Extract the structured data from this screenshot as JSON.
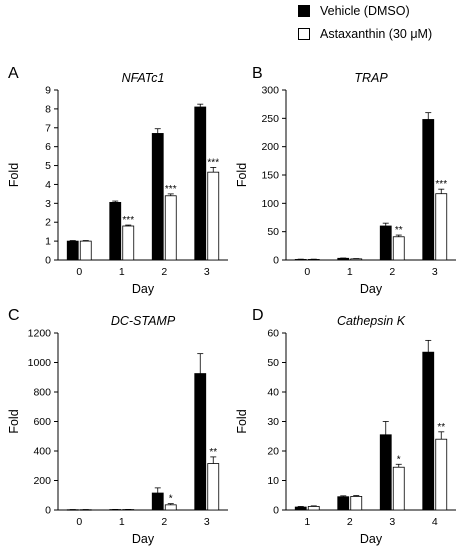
{
  "legend": {
    "items": [
      {
        "label": "Vehicle (DMSO)",
        "fill": "#000000"
      },
      {
        "label": "Astaxanthin (30 μM)",
        "fill": "#ffffff"
      }
    ]
  },
  "colors": {
    "vehicle": "#000000",
    "astaxanthin": "#ffffff",
    "outline": "#000000"
  },
  "chart_data": [
    {
      "panel": "A",
      "type": "bar",
      "title": "NFATc1",
      "title_italic": true,
      "xlabel": "Day",
      "ylabel": "Fold",
      "categories": [
        "0",
        "1",
        "2",
        "3"
      ],
      "ylim": [
        0,
        9
      ],
      "yticks": [
        0,
        1,
        2,
        3,
        4,
        5,
        6,
        7,
        8,
        9
      ],
      "series": [
        {
          "name": "Vehicle (DMSO)",
          "values": [
            1.0,
            3.05,
            6.7,
            8.1
          ],
          "errors": [
            0.03,
            0.07,
            0.25,
            0.15
          ]
        },
        {
          "name": "Astaxanthin (30 μM)",
          "values": [
            1.0,
            1.8,
            3.4,
            4.65
          ],
          "errors": [
            0.03,
            0.05,
            0.1,
            0.25
          ]
        }
      ],
      "annotations": [
        "",
        "***",
        "***",
        "***"
      ]
    },
    {
      "panel": "B",
      "type": "bar",
      "title": "TRAP",
      "title_italic": true,
      "xlabel": "Day",
      "ylabel": "Fold",
      "categories": [
        "0",
        "1",
        "2",
        "3"
      ],
      "ylim": [
        0,
        300
      ],
      "yticks": [
        0,
        50,
        100,
        150,
        200,
        250,
        300
      ],
      "series": [
        {
          "name": "Vehicle (DMSO)",
          "values": [
            1,
            3,
            60,
            248
          ],
          "errors": [
            0.5,
            0.5,
            5,
            12
          ]
        },
        {
          "name": "Astaxanthin (30 μM)",
          "values": [
            1,
            2,
            41,
            117
          ],
          "errors": [
            0.5,
            0.5,
            3,
            8
          ]
        }
      ],
      "annotations": [
        "",
        "",
        "**",
        "***"
      ]
    },
    {
      "panel": "C",
      "type": "bar",
      "title": "DC-STAMP",
      "title_italic": true,
      "xlabel": "Day",
      "ylabel": "Fold",
      "categories": [
        "0",
        "1",
        "2",
        "3"
      ],
      "ylim": [
        0,
        1200
      ],
      "yticks": [
        0,
        200,
        400,
        600,
        800,
        1000,
        1200
      ],
      "series": [
        {
          "name": "Vehicle (DMSO)",
          "values": [
            2,
            3,
            115,
            925
          ],
          "errors": [
            1,
            1,
            35,
            135
          ]
        },
        {
          "name": "Astaxanthin (30 μM)",
          "values": [
            2,
            3,
            35,
            315
          ],
          "errors": [
            1,
            1,
            8,
            45
          ]
        }
      ],
      "annotations": [
        "",
        "",
        "*",
        "**"
      ]
    },
    {
      "panel": "D",
      "type": "bar",
      "title": "Cathepsin K",
      "title_italic": true,
      "xlabel": "Day",
      "ylabel": "Fold",
      "categories": [
        "1",
        "2",
        "3",
        "4"
      ],
      "ylim": [
        0,
        60
      ],
      "yticks": [
        0,
        10,
        20,
        30,
        40,
        50,
        60
      ],
      "series": [
        {
          "name": "Vehicle (DMSO)",
          "values": [
            1,
            4.5,
            25.5,
            53.5
          ],
          "errors": [
            0.2,
            0.3,
            4.5,
            4
          ]
        },
        {
          "name": "Astaxanthin (30 μM)",
          "values": [
            1.2,
            4.6,
            14.5,
            24
          ],
          "errors": [
            0.2,
            0.3,
            1,
            2.5
          ]
        }
      ],
      "annotations": [
        "",
        "",
        "*",
        "**"
      ]
    }
  ]
}
